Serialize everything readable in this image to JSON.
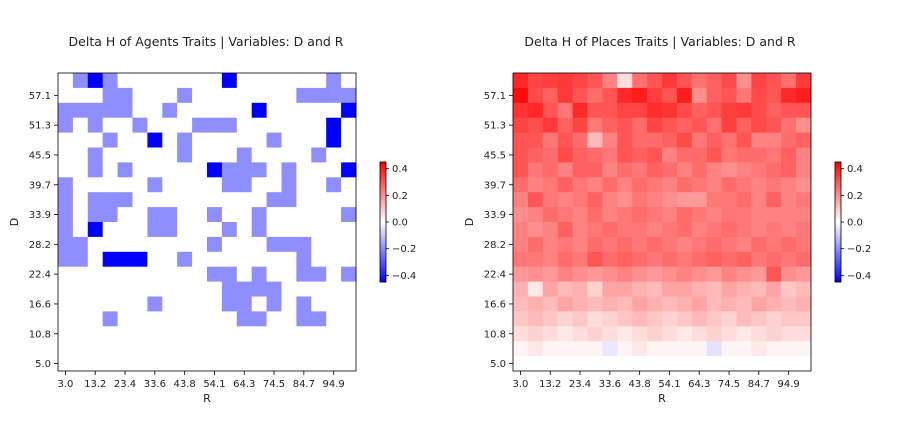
{
  "colors": {
    "negative": "#0000ff",
    "zero": "#ffffff",
    "positive": "#ff0000",
    "axis": "#000000"
  },
  "chart_data": [
    {
      "type": "heatmap",
      "title": "Delta H of Agents Traits | Variables: D and R",
      "xlabel": "R",
      "ylabel": "D",
      "x_tick_labels": [
        "3.0",
        "13.2",
        "23.4",
        "33.6",
        "43.8",
        "54.1",
        "64.3",
        "74.5",
        "84.7",
        "94.9"
      ],
      "y_tick_labels": [
        "57.1",
        "51.3",
        "45.5",
        "39.7",
        "33.9",
        "28.2",
        "22.4",
        "16.6",
        "10.8",
        "5.0"
      ],
      "grid": false,
      "colorbar": {
        "range": [
          -0.45,
          0.45
        ],
        "ticks": [
          "0.4",
          "0.2",
          "0.0",
          "−0.2",
          "−0.4"
        ],
        "tick_values": [
          0.4,
          0.2,
          0,
          -0.2,
          -0.4
        ],
        "placement": "right"
      },
      "grid_size": {
        "rows": 20,
        "cols": 20
      },
      "cell_values_rows_top_to_bottom": [
        [
          0,
          -0.2,
          -0.45,
          -0.2,
          0,
          0,
          0,
          0,
          0,
          0,
          0,
          -0.45,
          0,
          0,
          0,
          0,
          0,
          0,
          -0.2,
          0
        ],
        [
          0,
          0,
          0,
          -0.2,
          -0.2,
          0,
          0,
          0,
          -0.2,
          0,
          0,
          0,
          0,
          0,
          0,
          0,
          -0.2,
          -0.2,
          -0.2,
          -0.2
        ],
        [
          -0.2,
          -0.2,
          -0.2,
          -0.2,
          -0.2,
          0,
          0,
          -0.2,
          0,
          0,
          0,
          0,
          0,
          -0.45,
          0,
          0,
          0,
          0,
          0,
          -0.45
        ],
        [
          -0.2,
          0,
          -0.2,
          0,
          0,
          -0.2,
          0,
          0,
          0,
          -0.2,
          -0.2,
          -0.2,
          0,
          0,
          0,
          0,
          0,
          0,
          -0.45,
          0
        ],
        [
          0,
          0,
          0,
          -0.2,
          0,
          0,
          -0.45,
          0,
          -0.2,
          0,
          0,
          0,
          0,
          0,
          -0.2,
          0,
          0,
          0,
          -0.45,
          0
        ],
        [
          0,
          0,
          -0.2,
          0,
          0,
          0,
          0,
          0,
          -0.2,
          0,
          0,
          0,
          -0.2,
          0,
          0,
          0,
          0,
          -0.2,
          0,
          0
        ],
        [
          0,
          0,
          -0.2,
          0,
          -0.2,
          0,
          0,
          0,
          0,
          0,
          -0.45,
          -0.2,
          -0.2,
          -0.2,
          0,
          -0.2,
          0,
          0,
          0,
          -0.45
        ],
        [
          -0.2,
          0,
          0,
          0,
          0,
          0,
          -0.2,
          0,
          0,
          0,
          0,
          -0.2,
          -0.2,
          0,
          0,
          -0.2,
          0,
          0,
          -0.2,
          0
        ],
        [
          -0.2,
          0,
          -0.2,
          -0.2,
          -0.2,
          0,
          0,
          0,
          0,
          0,
          0,
          0,
          0,
          0,
          -0.2,
          -0.2,
          0,
          0,
          0,
          0
        ],
        [
          -0.2,
          0,
          -0.2,
          -0.2,
          0,
          0,
          -0.2,
          -0.2,
          0,
          0,
          -0.2,
          0,
          0,
          -0.2,
          0,
          0,
          0,
          0,
          0,
          -0.2
        ],
        [
          -0.2,
          0,
          -0.45,
          0,
          0,
          0,
          -0.2,
          -0.2,
          0,
          0,
          0,
          -0.2,
          0,
          -0.2,
          0,
          0,
          0,
          0,
          0,
          0
        ],
        [
          -0.2,
          -0.2,
          0,
          0,
          0,
          0,
          0,
          0,
          0,
          0,
          -0.2,
          0,
          0,
          0,
          -0.2,
          -0.2,
          -0.2,
          0,
          0,
          0
        ],
        [
          -0.2,
          -0.2,
          0,
          -0.45,
          -0.45,
          -0.45,
          0,
          0,
          -0.2,
          0,
          0,
          0,
          0,
          0,
          0,
          0,
          -0.2,
          0,
          0,
          0
        ],
        [
          0,
          0,
          0,
          0,
          0,
          0,
          0,
          0,
          0,
          0,
          -0.2,
          -0.2,
          0,
          -0.2,
          0,
          0,
          -0.2,
          -0.2,
          0,
          -0.2
        ],
        [
          0,
          0,
          0,
          0,
          0,
          0,
          0,
          0,
          0,
          0,
          0,
          -0.2,
          -0.2,
          -0.2,
          -0.2,
          0,
          0,
          0,
          0,
          0
        ],
        [
          0,
          0,
          0,
          0,
          0,
          0,
          -0.2,
          0,
          0,
          0,
          0,
          -0.2,
          -0.2,
          0,
          -0.2,
          0,
          -0.2,
          0,
          0,
          0
        ],
        [
          0,
          0,
          0,
          -0.2,
          0,
          0,
          0,
          0,
          0,
          0,
          0,
          0,
          -0.2,
          -0.2,
          0,
          0,
          -0.2,
          -0.2,
          0,
          0
        ],
        [
          0,
          0,
          0,
          0,
          0,
          0,
          0,
          0,
          0,
          0,
          0,
          0,
          0,
          0,
          0,
          0,
          0,
          0,
          0,
          0
        ],
        [
          0,
          0,
          0,
          0,
          0,
          0,
          0,
          0,
          0,
          0,
          0,
          0,
          0,
          0,
          0,
          0,
          0,
          0,
          0,
          0
        ],
        [
          0,
          0,
          0,
          0,
          0,
          0,
          0,
          0,
          0,
          0,
          0,
          0,
          0,
          0,
          0,
          0,
          0,
          0,
          0,
          0
        ]
      ]
    },
    {
      "type": "heatmap",
      "title": "Delta H of Places Traits | Variables: D and R",
      "xlabel": "R",
      "ylabel": "D",
      "x_tick_labels": [
        "3.0",
        "13.2",
        "23.4",
        "33.6",
        "43.8",
        "54.1",
        "64.3",
        "74.5",
        "84.7",
        "94.9"
      ],
      "y_tick_labels": [
        "57.1",
        "51.3",
        "45.5",
        "39.7",
        "33.9",
        "28.2",
        "22.4",
        "16.6",
        "10.8",
        "5.0"
      ],
      "grid": false,
      "colorbar": {
        "range": [
          -0.45,
          0.45
        ],
        "ticks": [
          "0.4",
          "0.2",
          "0.0",
          "−0.2",
          "−0.4"
        ],
        "tick_values": [
          0.4,
          0.2,
          0,
          -0.2,
          -0.4
        ],
        "placement": "right"
      },
      "grid_size": {
        "rows": 20,
        "cols": 20
      },
      "cell_values_rows_top_to_bottom": [
        [
          0.38,
          0.33,
          0.34,
          0.35,
          0.33,
          0.3,
          0.22,
          0.06,
          0.25,
          0.3,
          0.35,
          0.3,
          0.25,
          0.28,
          0.32,
          0.2,
          0.33,
          0.3,
          0.25,
          0.35
        ],
        [
          0.43,
          0.32,
          0.28,
          0.35,
          0.3,
          0.26,
          0.3,
          0.38,
          0.4,
          0.34,
          0.3,
          0.4,
          0.2,
          0.28,
          0.3,
          0.24,
          0.32,
          0.3,
          0.38,
          0.4
        ],
        [
          0.36,
          0.38,
          0.3,
          0.24,
          0.38,
          0.3,
          0.3,
          0.33,
          0.33,
          0.37,
          0.36,
          0.32,
          0.28,
          0.3,
          0.34,
          0.35,
          0.32,
          0.28,
          0.3,
          0.3
        ],
        [
          0.33,
          0.31,
          0.35,
          0.28,
          0.33,
          0.24,
          0.28,
          0.3,
          0.26,
          0.33,
          0.3,
          0.28,
          0.3,
          0.25,
          0.34,
          0.28,
          0.32,
          0.3,
          0.25,
          0.2
        ],
        [
          0.3,
          0.3,
          0.24,
          0.3,
          0.26,
          0.12,
          0.22,
          0.3,
          0.26,
          0.26,
          0.28,
          0.32,
          0.24,
          0.28,
          0.25,
          0.3,
          0.22,
          0.22,
          0.26,
          0.28
        ],
        [
          0.3,
          0.28,
          0.26,
          0.32,
          0.28,
          0.26,
          0.24,
          0.3,
          0.28,
          0.3,
          0.22,
          0.26,
          0.26,
          0.3,
          0.24,
          0.26,
          0.26,
          0.24,
          0.28,
          0.22
        ],
        [
          0.3,
          0.24,
          0.26,
          0.22,
          0.28,
          0.28,
          0.22,
          0.26,
          0.24,
          0.28,
          0.26,
          0.22,
          0.26,
          0.22,
          0.2,
          0.22,
          0.24,
          0.26,
          0.28,
          0.22
        ],
        [
          0.26,
          0.22,
          0.24,
          0.28,
          0.24,
          0.22,
          0.26,
          0.22,
          0.26,
          0.24,
          0.22,
          0.26,
          0.24,
          0.22,
          0.26,
          0.24,
          0.22,
          0.24,
          0.22,
          0.2
        ],
        [
          0.22,
          0.3,
          0.24,
          0.22,
          0.24,
          0.28,
          0.22,
          0.2,
          0.24,
          0.22,
          0.2,
          0.18,
          0.18,
          0.24,
          0.24,
          0.26,
          0.22,
          0.28,
          0.22,
          0.24
        ],
        [
          0.2,
          0.22,
          0.26,
          0.24,
          0.22,
          0.26,
          0.22,
          0.24,
          0.26,
          0.24,
          0.22,
          0.26,
          0.24,
          0.22,
          0.24,
          0.24,
          0.22,
          0.22,
          0.22,
          0.22
        ],
        [
          0.22,
          0.2,
          0.22,
          0.28,
          0.22,
          0.24,
          0.26,
          0.24,
          0.24,
          0.22,
          0.24,
          0.26,
          0.22,
          0.24,
          0.26,
          0.24,
          0.22,
          0.24,
          0.22,
          0.24
        ],
        [
          0.22,
          0.26,
          0.22,
          0.24,
          0.22,
          0.26,
          0.24,
          0.26,
          0.24,
          0.26,
          0.24,
          0.22,
          0.24,
          0.26,
          0.24,
          0.22,
          0.26,
          0.24,
          0.26,
          0.24
        ],
        [
          0.24,
          0.24,
          0.22,
          0.26,
          0.24,
          0.3,
          0.26,
          0.28,
          0.26,
          0.24,
          0.26,
          0.24,
          0.26,
          0.28,
          0.26,
          0.28,
          0.24,
          0.26,
          0.24,
          0.26
        ],
        [
          0.18,
          0.2,
          0.18,
          0.22,
          0.2,
          0.18,
          0.2,
          0.22,
          0.2,
          0.18,
          0.2,
          0.22,
          0.2,
          0.18,
          0.22,
          0.2,
          0.18,
          0.3,
          0.2,
          0.18
        ],
        [
          0.14,
          0.04,
          0.16,
          0.12,
          0.14,
          0.08,
          0.16,
          0.16,
          0.14,
          0.12,
          0.16,
          0.16,
          0.14,
          0.12,
          0.16,
          0.14,
          0.12,
          0.16,
          0.1,
          0.12
        ],
        [
          0.12,
          0.14,
          0.12,
          0.16,
          0.14,
          0.12,
          0.14,
          0.12,
          0.16,
          0.14,
          0.12,
          0.14,
          0.16,
          0.12,
          0.14,
          0.12,
          0.16,
          0.14,
          0.12,
          0.14
        ],
        [
          0.1,
          0.12,
          0.1,
          0.08,
          0.1,
          0.06,
          0.08,
          0.1,
          0.12,
          0.1,
          0.08,
          0.1,
          0.12,
          0.1,
          0.08,
          0.12,
          0.1,
          0.08,
          0.1,
          0.1
        ],
        [
          0.06,
          0.08,
          0.06,
          0.04,
          0.06,
          0.08,
          0.06,
          0.04,
          0.06,
          0.08,
          0.06,
          0.04,
          0.06,
          0.08,
          0.06,
          0.04,
          0.06,
          0.08,
          0.06,
          0.06
        ],
        [
          0.02,
          0.04,
          0.02,
          0.02,
          0.02,
          0.02,
          -0.04,
          0.02,
          0.04,
          0.02,
          0.02,
          0.02,
          0.02,
          -0.05,
          0.02,
          0.02,
          0.04,
          0.02,
          0.02,
          0.02
        ],
        [
          0,
          0,
          0,
          0,
          0,
          0,
          0,
          0,
          0,
          0,
          0,
          0,
          0,
          0,
          0,
          0,
          0,
          0,
          0,
          0
        ]
      ]
    }
  ]
}
